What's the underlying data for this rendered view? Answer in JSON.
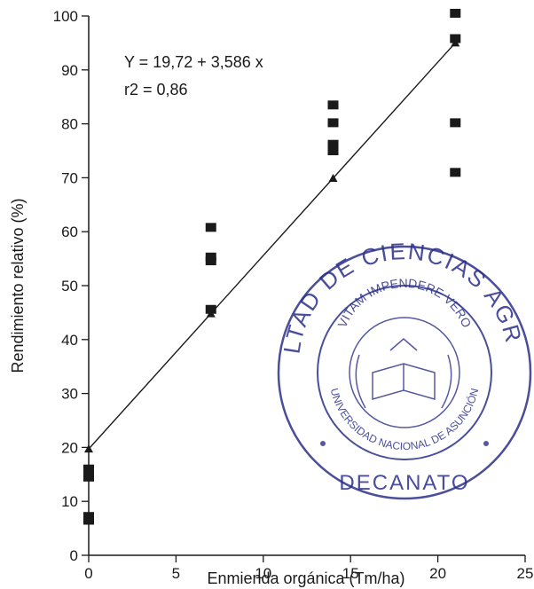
{
  "chart_data": {
    "type": "scatter",
    "title": "",
    "xlabel": "Enmienda orgánica (Tm/ha)",
    "ylabel": "Rendimiento relativo (%)",
    "xlim": [
      0,
      25
    ],
    "ylim": [
      0,
      100
    ],
    "xticks": [
      0,
      5,
      10,
      15,
      20,
      25
    ],
    "yticks": [
      0,
      10,
      20,
      30,
      40,
      50,
      60,
      70,
      80,
      90,
      100
    ],
    "grid": false,
    "series": [
      {
        "marker": "square",
        "points": [
          {
            "x": 0,
            "y": 16
          },
          {
            "x": 0,
            "y": 14.5
          },
          {
            "x": 0,
            "y": 7.2
          },
          {
            "x": 0,
            "y": 6.5
          },
          {
            "x": 7,
            "y": 60.8
          },
          {
            "x": 7,
            "y": 55.3
          },
          {
            "x": 7,
            "y": 54.6
          },
          {
            "x": 7,
            "y": 45.6
          },
          {
            "x": 14,
            "y": 83.5
          },
          {
            "x": 14,
            "y": 80.2
          },
          {
            "x": 14,
            "y": 76.2
          },
          {
            "x": 14,
            "y": 75
          },
          {
            "x": 21,
            "y": 100.5
          },
          {
            "x": 21,
            "y": 95.8
          },
          {
            "x": 21,
            "y": 80.2
          },
          {
            "x": 21,
            "y": 71
          }
        ]
      },
      {
        "marker": "triangle",
        "points": [
          {
            "x": 0,
            "y": 19.72
          },
          {
            "x": 7,
            "y": 44.8
          },
          {
            "x": 14,
            "y": 69.9
          },
          {
            "x": 21,
            "y": 95
          }
        ]
      }
    ],
    "regression": {
      "intercept": 19.72,
      "slope": 3.586,
      "x_range": [
        0,
        21
      ]
    },
    "annotations": [
      "Y = 19,72 + 3,586 x",
      "r2 = 0,86"
    ],
    "stamp": {
      "text_outer": "FACULTAD DE CIENCIAS AGRARIAS",
      "text_inner": "VITAM IMPENDERE VERO",
      "text_ring": "UNIVERSIDAD NACIONAL DE ASUNCIÓN",
      "text_bottom": "DECANATO",
      "color": "#2b2f8a"
    }
  }
}
